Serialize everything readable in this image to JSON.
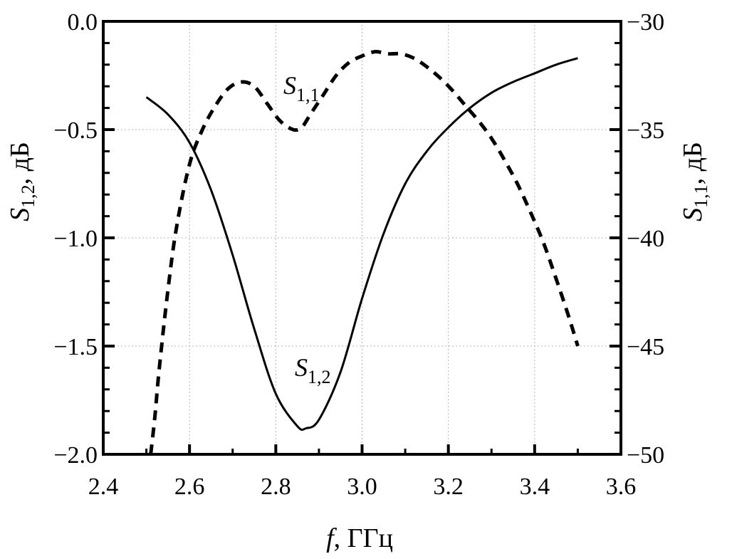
{
  "chart_data": {
    "type": "line",
    "xlabel": {
      "var": "f",
      "unit": "ГГц"
    },
    "ylabel_left": {
      "var": "S",
      "sub": "1,2",
      "unit": ", дБ"
    },
    "ylabel_right": {
      "var": "S",
      "sub": "1,1",
      "unit": ", дБ"
    },
    "xlim": [
      2.4,
      3.6
    ],
    "ylim_left": [
      -2.0,
      0.0
    ],
    "ylim_right": [
      -50,
      -30
    ],
    "grid": true,
    "x_ticks": [
      "2.4",
      "2.6",
      "2.8",
      "3.0",
      "3.2",
      "3.4",
      "3.6"
    ],
    "y_left_ticks": [
      "0.0",
      "−0.5",
      "−1.0",
      "−1.5",
      "−2.0"
    ],
    "y_right_ticks": [
      "−30",
      "−35",
      "−40",
      "−45",
      "−50"
    ],
    "series": [
      {
        "name": "S1,2",
        "label": {
          "var": "S",
          "sub": "1,2"
        },
        "axis": "left",
        "style": "solid",
        "x": [
          2.5,
          2.55,
          2.6,
          2.65,
          2.7,
          2.75,
          2.8,
          2.85,
          2.87,
          2.9,
          2.95,
          3.0,
          3.05,
          3.1,
          3.15,
          3.2,
          3.25,
          3.3,
          3.35,
          3.4,
          3.45,
          3.5
        ],
        "y": [
          -0.35,
          -0.43,
          -0.56,
          -0.78,
          -1.08,
          -1.42,
          -1.72,
          -1.87,
          -1.88,
          -1.84,
          -1.62,
          -1.28,
          -0.98,
          -0.75,
          -0.6,
          -0.49,
          -0.4,
          -0.33,
          -0.28,
          -0.24,
          -0.2,
          -0.17
        ]
      },
      {
        "name": "S1,1",
        "label": {
          "var": "S",
          "sub": "1,1"
        },
        "axis": "right",
        "style": "dashed",
        "x": [
          2.51,
          2.52,
          2.53,
          2.55,
          2.57,
          2.6,
          2.63,
          2.66,
          2.69,
          2.72,
          2.75,
          2.78,
          2.81,
          2.84,
          2.86,
          2.88,
          2.91,
          2.94,
          2.97,
          3.0,
          3.03,
          3.06,
          3.09,
          3.12,
          3.15,
          3.18,
          3.21,
          3.24,
          3.27,
          3.3,
          3.33,
          3.36,
          3.39,
          3.42,
          3.45,
          3.48,
          3.5
        ],
        "y": [
          -50,
          -48.2,
          -46,
          -42.4,
          -39.5,
          -36.6,
          -35,
          -33.9,
          -33.1,
          -32.8,
          -33,
          -33.8,
          -34.6,
          -35,
          -34.9,
          -34.3,
          -33.4,
          -32.5,
          -31.9,
          -31.6,
          -31.4,
          -31.5,
          -31.5,
          -31.7,
          -32.1,
          -32.6,
          -33.2,
          -33.9,
          -34.6,
          -35.4,
          -36.4,
          -37.5,
          -38.8,
          -40.2,
          -41.9,
          -43.7,
          -45
        ]
      }
    ]
  }
}
